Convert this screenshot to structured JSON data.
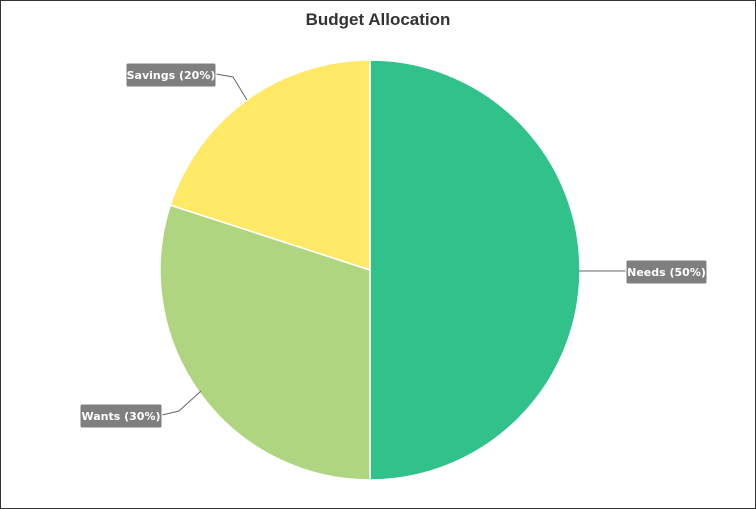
{
  "chart_data": {
    "type": "pie",
    "title": "Budget Allocation",
    "slices": [
      {
        "label": "Needs",
        "value": 50,
        "color": "#31c18a",
        "data_label": "Needs (50%)"
      },
      {
        "label": "Wants",
        "value": 30,
        "color": "#b0d581",
        "data_label": "Wants (30%)"
      },
      {
        "label": "Savings",
        "value": 20,
        "color": "#ffe966",
        "data_label": "Savings (20%)"
      }
    ],
    "label_box_color": "#7f7f7f"
  }
}
